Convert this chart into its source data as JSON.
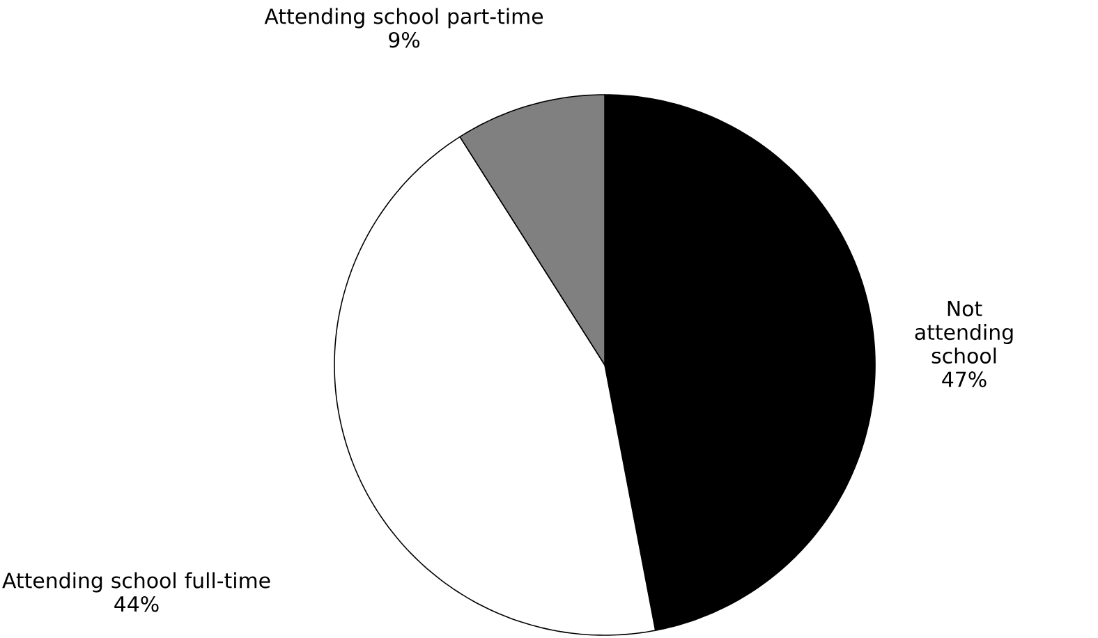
{
  "chart_data": {
    "type": "pie",
    "categories": [
      "Not attending school",
      "Attending school full-time",
      "Attending school part-time"
    ],
    "values": [
      47,
      44,
      9
    ],
    "value_labels": [
      "47%",
      "44%",
      "9%"
    ],
    "colors": [
      "#000000",
      "#ffffff",
      "#808080"
    ]
  }
}
